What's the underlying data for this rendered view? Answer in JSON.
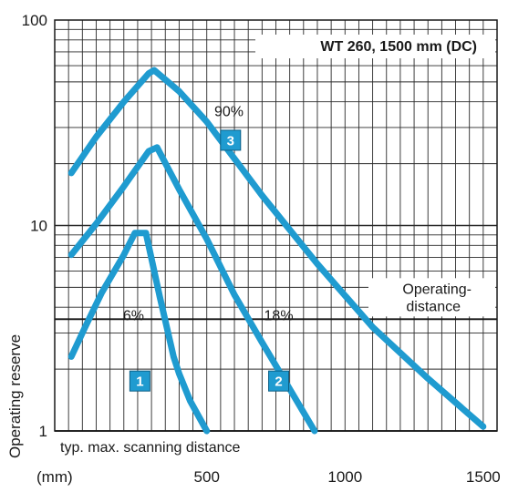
{
  "chart_data": {
    "type": "line",
    "title": "WT 260, 1500 mm (DC)",
    "xlabel": "",
    "x_unit_label": "(mm)",
    "ylabel": "Operating reserve",
    "x_range": [
      0,
      1500
    ],
    "xlim": [
      -50,
      1550
    ],
    "ylim": [
      1,
      100
    ],
    "y_scale": "log",
    "grid": true,
    "x_ticks": [
      500,
      1000,
      1500
    ],
    "x_tick_labels": [
      "500",
      "1000",
      "1500"
    ],
    "y_ticks": [
      1,
      10,
      100
    ],
    "y_tick_labels": [
      "1",
      "10",
      "100"
    ],
    "operating_distance_level": 3.5,
    "operating_distance_label_1": "Operating-",
    "operating_distance_label_2": "distance",
    "bottom_note": "typ. max. scanning distance",
    "line_color": "#1f9bd0",
    "series": [
      {
        "name": "6%",
        "badge": "1",
        "x": [
          10,
          60,
          120,
          200,
          240,
          280,
          330,
          380,
          400,
          440,
          500
        ],
        "y": [
          2.3,
          3.2,
          4.7,
          7.2,
          9.2,
          9.2,
          4.5,
          2.3,
          1.9,
          1.4,
          1.0
        ],
        "label_x": 235,
        "label_y": 3.45,
        "badge_x": 258,
        "badge_y": 1.75
      },
      {
        "name": "18%",
        "badge": "2",
        "x": [
          10,
          100,
          200,
          290,
          320,
          400,
          500,
          600,
          700,
          800,
          890
        ],
        "y": [
          7.2,
          10.2,
          15.5,
          23.0,
          24.0,
          15.0,
          8.6,
          4.6,
          2.7,
          1.6,
          1.0
        ],
        "label_x": 760,
        "label_y": 3.45,
        "badge_x": 760,
        "badge_y": 1.75
      },
      {
        "name": "90%",
        "badge": "3",
        "x": [
          10,
          100,
          200,
          290,
          310,
          400,
          500,
          700,
          900,
          1100,
          1300,
          1500
        ],
        "y": [
          18,
          27,
          40,
          55,
          57,
          45,
          32,
          14,
          6.5,
          3.2,
          1.8,
          1.05
        ],
        "label_x": 580,
        "label_y": 34,
        "badge_x": 586,
        "badge_y": 26
      }
    ]
  }
}
